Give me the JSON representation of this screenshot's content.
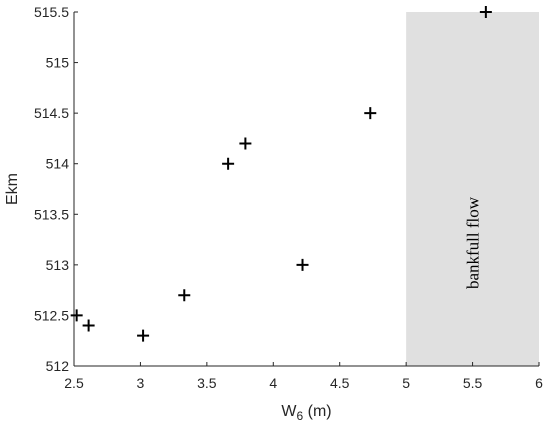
{
  "chart_data": {
    "type": "scatter",
    "marker": "plus",
    "xlabel": "W",
    "xlabel_subscript": "6",
    "xlabel_unit": " (m)",
    "ylabel": "Ekm",
    "xlim": [
      2.5,
      6
    ],
    "ylim": [
      512,
      515.5
    ],
    "xticks": [
      "2.5",
      "3",
      "3.5",
      "4",
      "4.5",
      "5",
      "5.5",
      "6"
    ],
    "yticks": [
      "512",
      "512.5",
      "513",
      "513.5",
      "514",
      "514.5",
      "515",
      "515.5"
    ],
    "grid": false,
    "shaded_region": {
      "x_from": 5,
      "x_to": 6,
      "label": "bankfull flow",
      "color": "#e0e0e0"
    },
    "points": [
      {
        "x": 2.52,
        "y": 512.5
      },
      {
        "x": 2.61,
        "y": 512.4
      },
      {
        "x": 3.02,
        "y": 512.3
      },
      {
        "x": 3.33,
        "y": 512.7
      },
      {
        "x": 3.66,
        "y": 514.0
      },
      {
        "x": 3.79,
        "y": 514.2
      },
      {
        "x": 4.22,
        "y": 513.0
      },
      {
        "x": 4.73,
        "y": 514.5
      },
      {
        "x": 5.6,
        "y": 515.5
      }
    ]
  }
}
